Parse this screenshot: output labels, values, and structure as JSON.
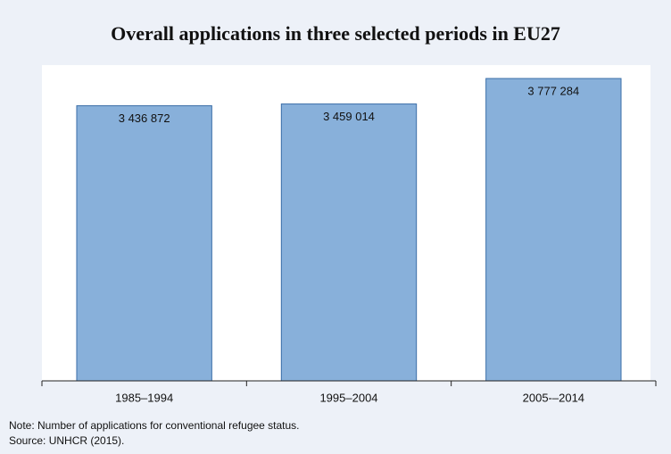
{
  "chart_data": {
    "type": "bar",
    "title": "Overall applications in three selected periods in EU27",
    "categories": [
      "1985–1994",
      "1995–2004",
      "2005-–2014"
    ],
    "values": [
      3436872,
      3459014,
      3777284
    ],
    "value_labels": [
      "3 436 872",
      "3 459 014",
      "3 777 284"
    ],
    "color": "#88b0da",
    "ylim": [
      0,
      3900000
    ],
    "notes": [
      "Note: Number of applications for conventional refugee status.",
      "Source: UNHCR (2015)."
    ]
  }
}
